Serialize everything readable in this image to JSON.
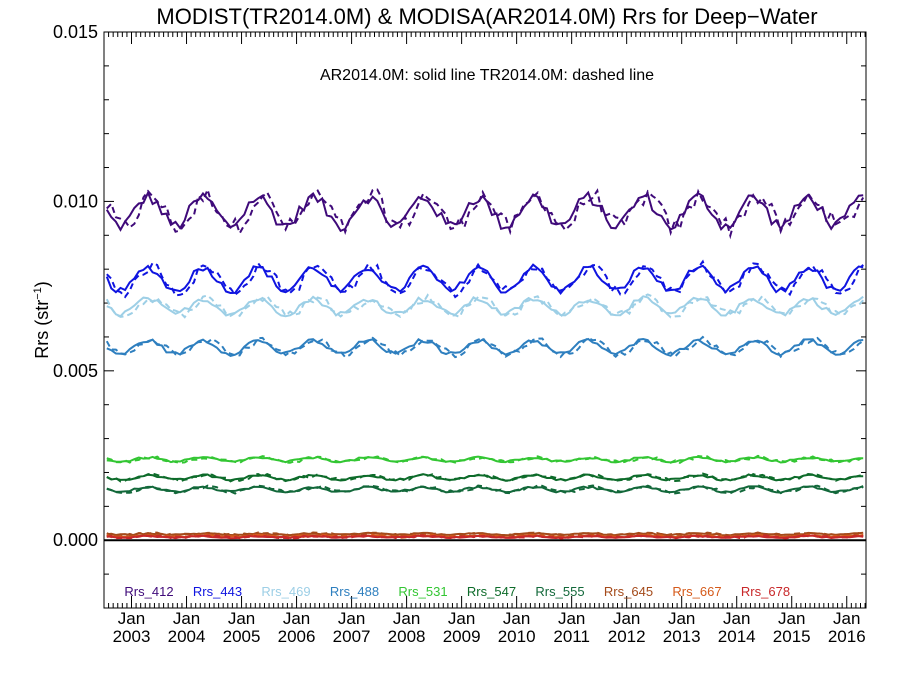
{
  "chart_data": {
    "type": "line",
    "title": "MODIST(TR2014.0M) & MODISA(AR2014.0M)  Rrs for Deep−Water",
    "annotation": "AR2014.0M: solid line   TR2014.0M: dashed line",
    "ylabel_main": "Rrs (str",
    "ylabel_sup": "−1",
    "ylabel_end": ")",
    "ylim": [
      -0.002,
      0.015
    ],
    "xlim": [
      2002.5,
      2016.35
    ],
    "yticks": [
      0.0,
      0.005,
      0.01,
      0.015
    ],
    "ytick_labels": [
      "0.000",
      "0.005",
      "0.010",
      "0.015"
    ],
    "xtick_years": [
      2003,
      2004,
      2005,
      2006,
      2007,
      2008,
      2009,
      2010,
      2011,
      2012,
      2013,
      2014,
      2015,
      2016
    ],
    "xtick_line1": "Jan",
    "xtick_labels": [
      "2003",
      "2004",
      "2005",
      "2006",
      "2007",
      "2008",
      "2009",
      "2010",
      "2011",
      "2012",
      "2013",
      "2014",
      "2015",
      "2016"
    ],
    "legend_position": "bottom",
    "zero_line": true,
    "series": [
      {
        "name": "Rrs_412",
        "color": "#3f0a7a",
        "base": 0.0097,
        "amp": 0.00042,
        "noise": 0.00018
      },
      {
        "name": "Rrs_443",
        "color": "#0f14e0",
        "base": 0.0077,
        "amp": 0.00035,
        "noise": 0.0001
      },
      {
        "name": "Rrs_469",
        "color": "#9dcfe6",
        "base": 0.0069,
        "amp": 0.00022,
        "noise": 8e-05
      },
      {
        "name": "Rrs_488",
        "color": "#2e7fbf",
        "base": 0.0057,
        "amp": 0.0002,
        "noise": 6e-05
      },
      {
        "name": "Rrs_531",
        "color": "#33c633",
        "base": 0.00238,
        "amp": 6e-05,
        "noise": 3e-05
      },
      {
        "name": "Rrs_547",
        "color": "#0d6b2a",
        "base": 0.00185,
        "amp": 7e-05,
        "noise": 3e-05
      },
      {
        "name": "Rrs_555",
        "color": "#12683a",
        "base": 0.0015,
        "amp": 7e-05,
        "noise": 3e-05
      },
      {
        "name": "Rrs_645",
        "color": "#a44a1a",
        "base": 0.00018,
        "amp": 2e-05,
        "noise": 2e-05
      },
      {
        "name": "Rrs_667",
        "color": "#d55a1a",
        "base": 0.00012,
        "amp": 2e-05,
        "noise": 2e-05
      },
      {
        "name": "Rrs_678",
        "color": "#c8282a",
        "base": 0.0001,
        "amp": 2e-05,
        "noise": 2e-05
      }
    ]
  }
}
